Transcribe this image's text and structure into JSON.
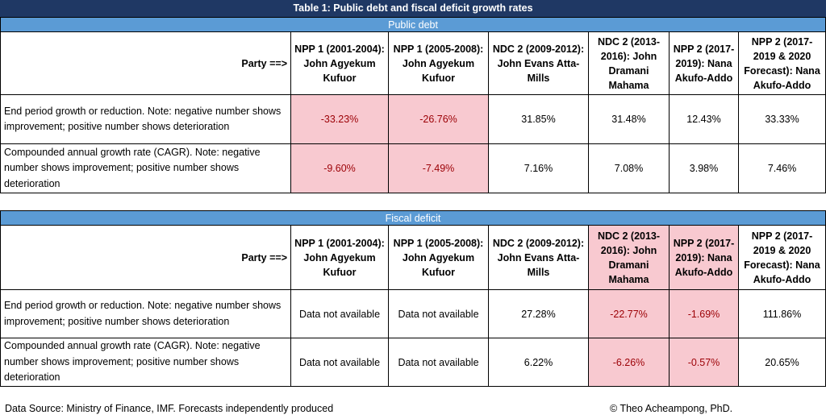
{
  "title": "Table 1: Public debt and fiscal deficit growth rates",
  "party_label": "Party ==>",
  "columns": [
    "NPP 1 (2001-2004): John Agyekum Kufuor",
    "NPP 1 (2005-2008): John Agyekum Kufuor",
    "NDC 2 (2009-2012): John Evans Atta-Mills",
    "NDC 2 (2013-2016): John Dramani Mahama",
    "NPP 2 (2017-2019): Nana Akufo-Addo",
    "NPP 2 (2017-2019 & 2020 Forecast): Nana Akufo-Addo"
  ],
  "public_debt": {
    "section_title": "Public debt",
    "rows": [
      {
        "label": "End period growth or reduction. Note: negative number shows improvement; positive number shows deterioration",
        "values": [
          "-33.23%",
          "-26.76%",
          "31.85%",
          "31.48%",
          "12.43%",
          "33.33%"
        ]
      },
      {
        "label": "Compounded annual growth rate (CAGR). Note: negative number shows improvement; positive number shows deterioration",
        "values": [
          "-9.60%",
          "-7.49%",
          "7.16%",
          "7.08%",
          "3.98%",
          "7.46%"
        ]
      }
    ]
  },
  "fiscal_deficit": {
    "section_title": "Fiscal deficit",
    "rows": [
      {
        "label": "End period growth or reduction. Note: negative number shows improvement; positive number shows deterioration",
        "values": [
          "Data not available",
          "Data not available",
          "27.28%",
          "-22.77%",
          "-1.69%",
          "111.86%"
        ]
      },
      {
        "label": "Compounded annual growth rate (CAGR). Note: negative number shows improvement; positive number shows deterioration",
        "values": [
          "Data not available",
          "Data not available",
          "6.22%",
          "-6.26%",
          "-0.57%",
          "20.65%"
        ]
      }
    ]
  },
  "footer": {
    "source": "Data Source: Ministry of Finance, IMF. Forecasts independently produced",
    "credit": "© Theo Acheampong, PhD."
  },
  "colors": {
    "banner": "#1f3864",
    "section_header": "#5b9bd5",
    "negative_fill": "#f8c9d0",
    "negative_text": "#9c0006"
  }
}
